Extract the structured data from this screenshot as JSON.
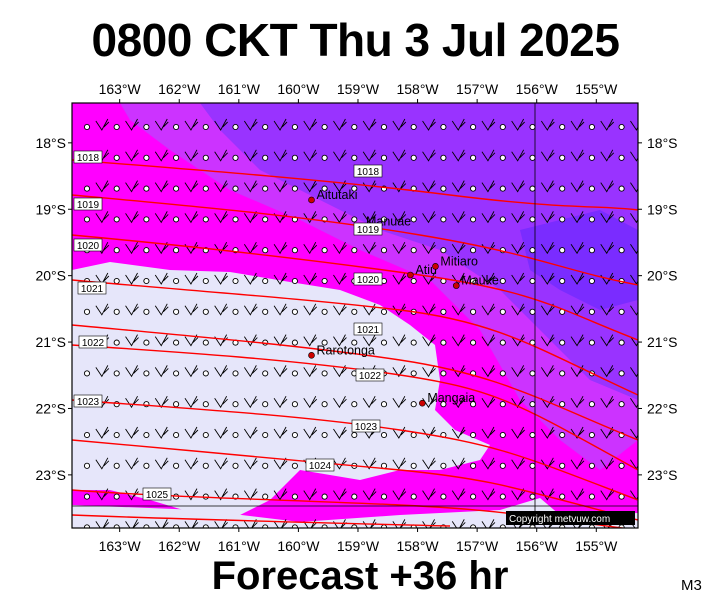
{
  "header": {
    "title": "0800 CKT Thu 3 Jul 2025"
  },
  "footer": {
    "forecast": "Forecast +36 hr",
    "code": "M3"
  },
  "map": {
    "lon_range": [
      -163.8,
      -154.3
    ],
    "lat_range": [
      -23.8,
      -17.4
    ],
    "lon_ticks": [
      "163°W",
      "162°W",
      "161°W",
      "160°W",
      "159°W",
      "158°W",
      "157°W",
      "156°W",
      "155°W"
    ],
    "lat_ticks": [
      "18°S",
      "19°S",
      "20°S",
      "21°S",
      "22°S",
      "23°S"
    ],
    "colors": {
      "land_free_low": "#e6e6fa",
      "magenta": "#ff00ff",
      "violet": "#cc33ff",
      "purple": "#9933ff",
      "blue_violet": "#7a2cff",
      "isobar": "#ff0000"
    },
    "places": [
      {
        "name": "Aitutaki",
        "lon": -159.78,
        "lat": -18.86
      },
      {
        "name": "Manuae",
        "lon": -158.95,
        "lat": -19.26
      },
      {
        "name": "Atiu",
        "lon": -158.12,
        "lat": -19.99
      },
      {
        "name": "Mitiaro",
        "lon": -157.7,
        "lat": -19.86
      },
      {
        "name": "Mauke",
        "lon": -157.35,
        "lat": -20.15
      },
      {
        "name": "Rarotonga",
        "lon": -159.78,
        "lat": -21.2
      },
      {
        "name": "Mangaia",
        "lon": -157.92,
        "lat": -21.92
      }
    ],
    "isobar_labels": [
      "1018",
      "1018",
      "1019",
      "1019",
      "1020",
      "1020",
      "1021",
      "1021",
      "1022",
      "1022",
      "1023",
      "1023",
      "1024",
      "1025"
    ],
    "copyright": "Copyright metvuw.com"
  }
}
